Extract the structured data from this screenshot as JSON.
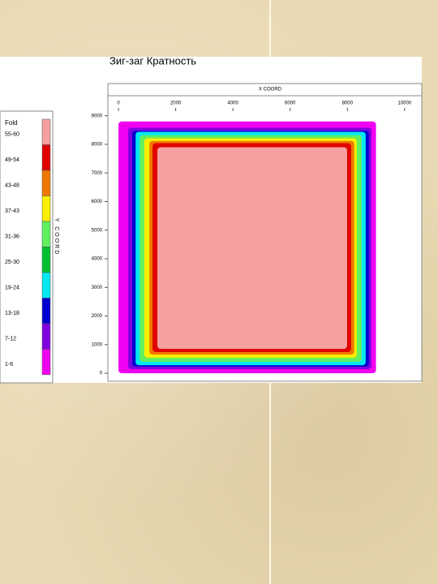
{
  "chart_data": {
    "type": "zonemap",
    "title": "Зиг-заг Кратность",
    "xlabel": "X COORD",
    "ylabel": "Y COORD",
    "legend_title": "Fold",
    "bins": [
      {
        "label": "55-60",
        "color": "#f4a0a0"
      },
      {
        "label": "49-54",
        "color": "#e00000"
      },
      {
        "label": "43-48",
        "color": "#f07800"
      },
      {
        "label": "37-43",
        "color": "#f8f000"
      },
      {
        "label": "31-36",
        "color": "#60f060"
      },
      {
        "label": "25-30",
        "color": "#00c030"
      },
      {
        "label": "19-24",
        "color": "#00e8f0"
      },
      {
        "label": "13-18",
        "color": "#0000d0"
      },
      {
        "label": "7-12",
        "color": "#8000e0"
      },
      {
        "label": "1-6",
        "color": "#f000f0"
      }
    ],
    "zones": [
      {
        "color": "#f000f0",
        "x": [
          0,
          9000
        ],
        "y": [
          0,
          8800
        ]
      },
      {
        "color": "#8000e0",
        "x": [
          340,
          8840
        ],
        "y": [
          140,
          8580
        ]
      },
      {
        "color": "#0000d0",
        "x": [
          480,
          8750
        ],
        "y": [
          230,
          8470
        ]
      },
      {
        "color": "#00e8f0",
        "x": [
          600,
          8640
        ],
        "y": [
          280,
          8440
        ]
      },
      {
        "color": "#60f060",
        "x": [
          740,
          8500
        ],
        "y": [
          400,
          8320
        ]
      },
      {
        "color": "#f8f000",
        "x": [
          900,
          8330
        ],
        "y": [
          540,
          8210
        ]
      },
      {
        "color": "#f07800",
        "x": [
          1080,
          8240
        ],
        "y": [
          650,
          8120
        ]
      },
      {
        "color": "#e00000",
        "x": [
          1190,
          8130
        ],
        "y": [
          740,
          8040
        ]
      },
      {
        "color": "#f4a0a0",
        "x": [
          1360,
          7990
        ],
        "y": [
          850,
          7900
        ]
      }
    ],
    "xlim": [
      -370,
      10600
    ],
    "ylim": [
      -280,
      9700
    ],
    "xticks": [
      0,
      2000,
      4000,
      6000,
      8000,
      10000
    ],
    "yticks": [
      0,
      1000,
      2000,
      3000,
      4000,
      5000,
      6000,
      7000,
      8000,
      9000
    ]
  }
}
